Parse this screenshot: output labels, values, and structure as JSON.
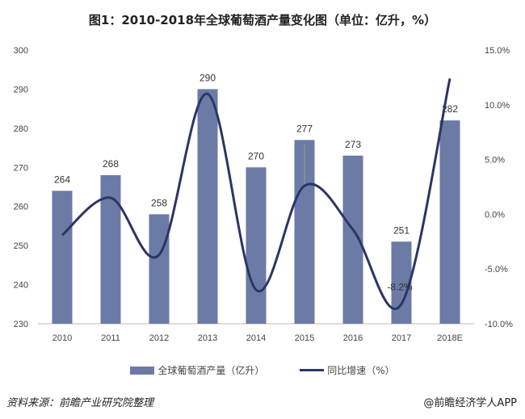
{
  "chart_data": {
    "type": "bar+line",
    "title": "图1：2010-2018年全球葡萄酒产量变化图（单位：亿升，%）",
    "categories": [
      "2010",
      "2011",
      "2012",
      "2013",
      "2014",
      "2015",
      "2016",
      "2017",
      "2018E"
    ],
    "series": [
      {
        "name": "全球葡萄酒产量（亿升）",
        "type": "bar",
        "axis": "left",
        "values": [
          264,
          268,
          258,
          290,
          270,
          277,
          273,
          251,
          282
        ]
      },
      {
        "name": "同比增速（%）",
        "type": "line",
        "axis": "right",
        "values": [
          -1.9,
          1.5,
          -3.7,
          11.0,
          -6.9,
          2.6,
          -1.4,
          -8.2,
          12.4
        ]
      }
    ],
    "left_axis": {
      "range": [
        230,
        300
      ],
      "ticks": [
        "230",
        "240",
        "250",
        "260",
        "270",
        "280",
        "290",
        "300"
      ]
    },
    "right_axis": {
      "range": [
        -10,
        15
      ],
      "ticks": [
        "-10.0%",
        "-5.0%",
        "0.0%",
        "5.0%",
        "10.0%",
        "15.0%"
      ]
    },
    "annotations": [
      "-8.2%"
    ],
    "legend": "bottom",
    "grid": false,
    "colors": {
      "bar": "#6c7aa6",
      "line": "#2b3566"
    }
  },
  "footer": {
    "source": "资料来源：前瞻产业研究院整理",
    "brand": "@前瞻经济学人APP"
  }
}
